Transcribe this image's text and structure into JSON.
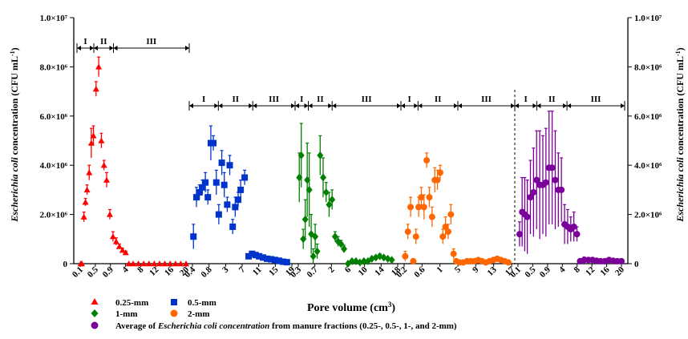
{
  "chart_data": {
    "type": "scatter",
    "xlabel": "Pore volume (cm",
    "xlabel_sup": "3",
    "xlabel_end": ")",
    "ylabel": {
      "italic": "Escherichia coli",
      "rest": " concentration (CFU mL",
      "sup": "-1",
      "end": ")"
    },
    "ylim": [
      0,
      10000000
    ],
    "y_ticks": [
      {
        "value": 0,
        "label": "0"
      },
      {
        "value": 2000000,
        "label": "2.0×10⁶"
      },
      {
        "value": 4000000,
        "label": "4.0×10⁶"
      },
      {
        "value": 6000000,
        "label": "6.0×10⁶"
      },
      {
        "value": 8000000,
        "label": "8.0×10⁶"
      },
      {
        "value": 10000000,
        "label": "1.0×10⁷"
      }
    ],
    "panels": [
      {
        "series": "0.25-mm",
        "x_range": [
          0,
          20
        ],
        "tick_labels": [
          "0.1",
          "0.5",
          "0.9",
          "4",
          "8",
          "12",
          "16",
          "20"
        ],
        "phases": [
          {
            "label": "I",
            "from": 0,
            "to": 3
          },
          {
            "label": "II",
            "from": 3,
            "to": 6.5
          },
          {
            "label": "III",
            "from": 6.5,
            "to": 20
          }
        ]
      },
      {
        "series": "0.5-mm",
        "x_range": [
          0,
          20
        ],
        "tick_labels": [
          "0.4",
          "0.8",
          "3",
          "7",
          "11",
          "15",
          "19"
        ],
        "phases": [
          {
            "label": "I",
            "from": 0,
            "to": 5.5
          },
          {
            "label": "II",
            "from": 5.5,
            "to": 12
          },
          {
            "label": "III",
            "from": 12,
            "to": 20
          }
        ]
      },
      {
        "series": "1-mm",
        "x_range": [
          0,
          20
        ],
        "tick_labels": [
          "0.3",
          "0.7",
          "2",
          "6",
          "10",
          "14",
          "18"
        ],
        "phases": [
          {
            "label": "I",
            "from": 0,
            "to": 2.5
          },
          {
            "label": "II",
            "from": 2.5,
            "to": 7
          },
          {
            "label": "III",
            "from": 7,
            "to": 20
          }
        ]
      },
      {
        "series": "2-mm",
        "x_range": [
          0,
          20
        ],
        "tick_labels": [
          "0.2",
          "0.6",
          "1",
          "5",
          "9",
          "13",
          "17"
        ],
        "phases": [
          {
            "label": "I",
            "from": 0,
            "to": 3
          },
          {
            "label": "II",
            "from": 3,
            "to": 10
          },
          {
            "label": "III",
            "from": 10,
            "to": 20
          }
        ]
      },
      {
        "series": "Average of Escherichia coli concentration from manure fractions (0.25-, 0.5-, 1-, and 2-mm)",
        "x_range": [
          0,
          20
        ],
        "tick_labels": [
          "0.1",
          "0.5",
          "0.9",
          "4",
          "8",
          "12",
          "16",
          "20"
        ],
        "phases": [
          {
            "label": "I",
            "from": 0,
            "to": 4
          },
          {
            "label": "II",
            "from": 4,
            "to": 9.5
          },
          {
            "label": "III",
            "from": 9.5,
            "to": 20
          }
        ]
      }
    ],
    "series": [
      {
        "name": "0.25-mm",
        "color": "#ff0000",
        "marker": "triangle",
        "panel": 0,
        "x": [
          0.1,
          0.3,
          0.7,
          1.0,
          1.3,
          1.7,
          2.1,
          2.5,
          3.0,
          3.5,
          4.0,
          4.5,
          5.0,
          5.6,
          6.2,
          6.8,
          7.4,
          8.0,
          8.6,
          9.2,
          10,
          11,
          12,
          13,
          14,
          15,
          16,
          17,
          18,
          19,
          20
        ],
        "y": [
          0,
          0,
          1900000,
          2500000,
          3000000,
          3700000,
          4900000,
          5200000,
          7100000,
          8000000,
          5000000,
          4000000,
          3400000,
          2000000,
          1100000,
          900000,
          700000,
          550000,
          450000,
          0,
          0,
          0,
          0,
          0,
          0,
          0,
          0,
          0,
          0,
          0,
          0
        ],
        "err": [
          0,
          0,
          200000,
          150000,
          200000,
          300000,
          600000,
          400000,
          300000,
          400000,
          300000,
          200000,
          300000,
          200000,
          200000,
          150000,
          100000,
          80000,
          60000,
          0,
          0,
          0,
          0,
          0,
          0,
          0,
          0,
          0,
          0,
          0,
          0
        ]
      },
      {
        "name": "0.5-mm",
        "color": "#0033cc",
        "marker": "square",
        "panel": 1,
        "x": [
          0.2,
          0.8,
          1.4,
          2.0,
          2.6,
          3.1,
          3.7,
          4.2,
          4.8,
          5.3,
          5.9,
          6.4,
          7.0,
          7.5,
          8.1,
          8.6,
          9.2,
          9.7,
          10.5,
          11.3,
          12,
          12.7,
          13.4,
          14.2,
          15,
          15.8,
          16.6,
          17.4,
          18.2,
          19
        ],
        "y": [
          1100000,
          2700000,
          2900000,
          3100000,
          3300000,
          2700000,
          4900000,
          4900000,
          3300000,
          2000000,
          4100000,
          3200000,
          2400000,
          4000000,
          1500000,
          2300000,
          2600000,
          3000000,
          3500000,
          300000,
          400000,
          350000,
          300000,
          250000,
          200000,
          180000,
          150000,
          120000,
          80000,
          60000
        ],
        "err": [
          500000,
          400000,
          300000,
          300000,
          400000,
          300000,
          700000,
          300000,
          500000,
          400000,
          500000,
          500000,
          300000,
          400000,
          300000,
          400000,
          300000,
          400000,
          300000,
          100000,
          100000,
          80000,
          60000,
          60000,
          50000,
          40000,
          40000,
          30000,
          20000,
          20000
        ]
      },
      {
        "name": "1-mm",
        "color": "#008000",
        "marker": "diamond",
        "panel": 2,
        "x": [
          0.2,
          0.6,
          1.0,
          1.4,
          1.8,
          2.2,
          2.6,
          3.0,
          3.4,
          3.8,
          4.4,
          5.0,
          5.6,
          6.2,
          6.8,
          7.4,
          8.0,
          8.6,
          9.2,
          10,
          10.8,
          11.6,
          12.4,
          13.2,
          14,
          14.8,
          15.6,
          16.4,
          17.2,
          18,
          18.8
        ],
        "y": [
          3500000,
          4400000,
          1000000,
          1800000,
          3400000,
          3000000,
          1200000,
          300000,
          1100000,
          500000,
          4400000,
          3500000,
          2900000,
          2400000,
          2600000,
          1100000,
          900000,
          800000,
          600000,
          0,
          100000,
          100000,
          50000,
          100000,
          100000,
          200000,
          250000,
          300000,
          250000,
          200000,
          150000
        ],
        "err": [
          1000000,
          1300000,
          400000,
          800000,
          1500000,
          1500000,
          800000,
          300000,
          500000,
          300000,
          800000,
          800000,
          400000,
          500000,
          400000,
          200000,
          200000,
          150000,
          150000,
          0,
          50000,
          50000,
          30000,
          50000,
          50000,
          80000,
          80000,
          100000,
          80000,
          60000,
          50000
        ]
      },
      {
        "name": "2-mm",
        "color": "#ff6600",
        "marker": "circle",
        "panel": 3,
        "x": [
          0.2,
          0.7,
          1.2,
          1.7,
          2.2,
          2.7,
          3.2,
          3.7,
          4.2,
          4.7,
          5.2,
          5.7,
          6.2,
          6.7,
          7.2,
          7.7,
          8.2,
          8.7,
          9.2,
          9.7,
          10.3,
          11,
          11.7,
          12.4,
          13.1,
          13.8,
          14.5,
          15.2,
          15.9,
          16.6,
          17.3,
          18,
          18.7,
          19.4
        ],
        "y": [
          300000,
          1300000,
          2300000,
          100000,
          1100000,
          2300000,
          2700000,
          2300000,
          4200000,
          2700000,
          1900000,
          3400000,
          3400000,
          3700000,
          1100000,
          1500000,
          1300000,
          2000000,
          400000,
          100000,
          50000,
          50000,
          100000,
          100000,
          100000,
          150000,
          100000,
          50000,
          100000,
          150000,
          200000,
          150000,
          100000,
          50000
        ],
        "err": [
          200000,
          300000,
          400000,
          100000,
          300000,
          400000,
          400000,
          500000,
          300000,
          400000,
          400000,
          500000,
          400000,
          300000,
          300000,
          400000,
          300000,
          400000,
          200000,
          50000,
          30000,
          30000,
          40000,
          40000,
          40000,
          50000,
          40000,
          30000,
          40000,
          50000,
          60000,
          50000,
          40000,
          30000
        ]
      },
      {
        "name": "Average of Escherichia coli concentration from manure fractions (0.25-, 0.5-, 1-, and 2-mm)",
        "color": "#7b0099",
        "marker": "circle",
        "panel": 4,
        "x": [
          0.3,
          0.8,
          1.3,
          1.8,
          2.4,
          3.0,
          3.6,
          4.2,
          4.8,
          5.4,
          6.0,
          6.6,
          7.2,
          7.8,
          8.4,
          9.0,
          9.6,
          10.2,
          10.8,
          11.4,
          12,
          12.8,
          13.6,
          14.4,
          15.2,
          16,
          16.8,
          17.6,
          18.4,
          19.2,
          20
        ],
        "y": [
          1200000,
          2100000,
          2000000,
          1900000,
          2700000,
          2900000,
          3400000,
          3200000,
          3200000,
          3300000,
          3900000,
          3900000,
          3400000,
          3000000,
          3000000,
          1600000,
          1500000,
          1400000,
          1500000,
          1200000,
          100000,
          150000,
          150000,
          150000,
          120000,
          100000,
          100000,
          150000,
          120000,
          100000,
          100000
        ],
        "err": [
          500000,
          1400000,
          1500000,
          1500000,
          1500000,
          1800000,
          2000000,
          2200000,
          2000000,
          2200000,
          2300000,
          2300000,
          2000000,
          1500000,
          1300000,
          800000,
          700000,
          500000,
          600000,
          300000,
          100000,
          120000,
          100000,
          100000,
          100000,
          80000,
          80000,
          100000,
          80000,
          80000,
          80000
        ]
      }
    ],
    "legend": {
      "placement": "bottom-left",
      "items": [
        {
          "label": "0.25-mm",
          "series": 0
        },
        {
          "label": "0.5-mm",
          "series": 1
        },
        {
          "label": "1-mm",
          "series": 2
        },
        {
          "label": "2-mm",
          "series": 3
        }
      ],
      "average": {
        "prefix": "Average of ",
        "italic": "Escherichia coli concentration",
        "suffix": " from manure fractions (0.25-, 0.5-, 1-, and 2-mm)",
        "series": 4
      }
    },
    "grid": false
  }
}
